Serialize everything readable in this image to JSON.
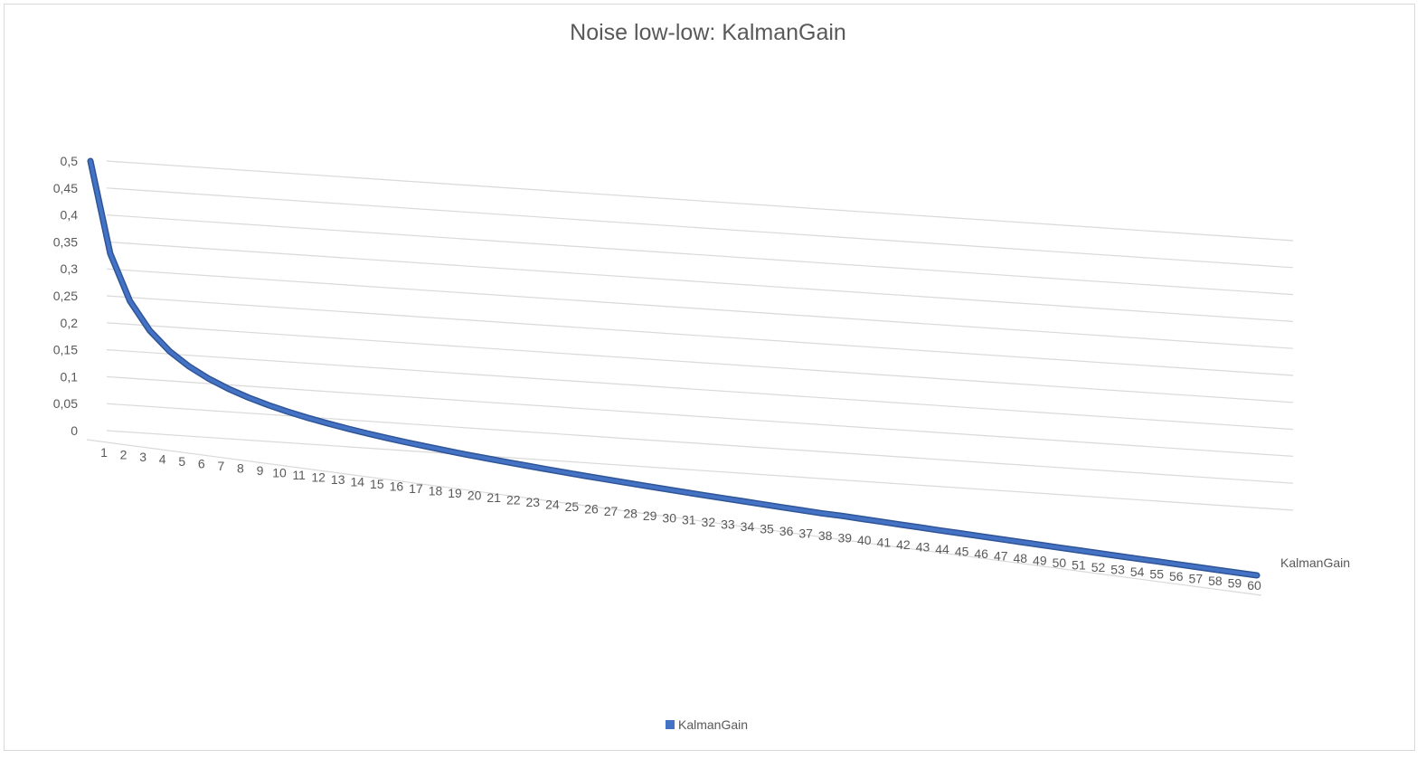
{
  "chart_data": {
    "type": "line",
    "style": "3d-line",
    "title": "Noise low-low: KalmanGain",
    "xlabel": "",
    "ylabel": "",
    "ylim": [
      0,
      0.5
    ],
    "y_ticks": [
      "0",
      "0,05",
      "0,1",
      "0,15",
      "0,2",
      "0,25",
      "0,3",
      "0,35",
      "0,4",
      "0,45",
      "0,5"
    ],
    "categories": [
      "1",
      "2",
      "3",
      "4",
      "5",
      "6",
      "7",
      "8",
      "9",
      "10",
      "11",
      "12",
      "13",
      "14",
      "15",
      "16",
      "17",
      "18",
      "19",
      "20",
      "21",
      "22",
      "23",
      "24",
      "25",
      "26",
      "27",
      "28",
      "29",
      "30",
      "31",
      "32",
      "33",
      "34",
      "35",
      "36",
      "37",
      "38",
      "39",
      "40",
      "41",
      "42",
      "43",
      "44",
      "45",
      "46",
      "47",
      "48",
      "49",
      "50",
      "51",
      "52",
      "53",
      "54",
      "55",
      "56",
      "57",
      "58",
      "59",
      "60"
    ],
    "series": [
      {
        "name": "KalmanGain",
        "color": "#4472c4",
        "values": [
          0.5,
          0.3333,
          0.25,
          0.2,
          0.1667,
          0.1429,
          0.125,
          0.1111,
          0.1,
          0.0909,
          0.0833,
          0.0769,
          0.0714,
          0.0667,
          0.0625,
          0.0588,
          0.0556,
          0.0526,
          0.05,
          0.0476,
          0.0455,
          0.0435,
          0.0417,
          0.04,
          0.0385,
          0.037,
          0.0357,
          0.0345,
          0.0333,
          0.0323,
          0.0313,
          0.0303,
          0.0294,
          0.0286,
          0.0278,
          0.027,
          0.0263,
          0.0256,
          0.0256,
          0.025,
          0.0244,
          0.0238,
          0.0233,
          0.0227,
          0.0222,
          0.0217,
          0.0213,
          0.0208,
          0.0204,
          0.02,
          0.0196,
          0.0192,
          0.0189,
          0.0185,
          0.0182,
          0.0179,
          0.0175,
          0.0172,
          0.0169,
          0.0167
        ]
      }
    ],
    "grid": true,
    "legend": "bottom",
    "depth_axis_label": "KalmanGain"
  }
}
